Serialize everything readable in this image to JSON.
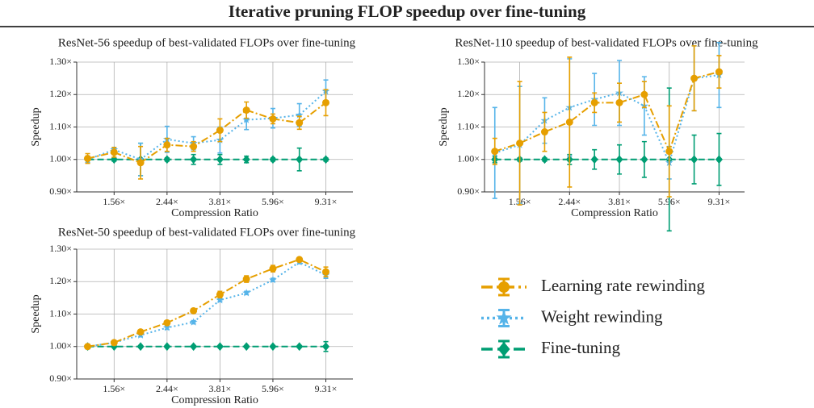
{
  "title": "Iterative pruning FLOP speedup over fine-tuning",
  "chart_data": [
    {
      "type": "line",
      "title": "ResNet-56 speedup of best-validated FLOPs over fine-tuning",
      "x_label": "Compression Ratio",
      "y_label": "Speedup",
      "xscale": "log",
      "grid": true,
      "x": [
        1.25,
        1.5625,
        1.953125,
        2.441406,
        3.051758,
        3.814697,
        4.768372,
        5.960464,
        7.450581,
        9.313226
      ],
      "xlim": [
        1.14,
        11.7
      ],
      "xticks": [
        {
          "value": 1.5625,
          "label": "1.56×"
        },
        {
          "value": 2.441406,
          "label": "2.44×"
        },
        {
          "value": 3.814697,
          "label": "3.81×"
        },
        {
          "value": 5.960464,
          "label": "5.96×"
        },
        {
          "value": 9.313226,
          "label": "9.31×"
        }
      ],
      "ylim": [
        0.9,
        1.3
      ],
      "yticks": [
        {
          "value": 0.9,
          "label": "0.90×"
        },
        {
          "value": 1.0,
          "label": "1.00×"
        },
        {
          "value": 1.1,
          "label": "1.10×"
        },
        {
          "value": 1.2,
          "label": "1.20×"
        },
        {
          "value": 1.3,
          "label": "1.30×"
        }
      ],
      "series": [
        {
          "name": "Learning rate rewinding",
          "color": "#E69F00",
          "marker": "circle",
          "dash": "dashdot",
          "values": [
            1.003,
            1.022,
            0.99,
            1.045,
            1.04,
            1.09,
            1.152,
            1.125,
            1.113,
            1.175
          ],
          "errors": [
            0.015,
            0.015,
            0.05,
            0.02,
            0.015,
            0.035,
            0.025,
            0.015,
            0.02,
            0.04
          ]
        },
        {
          "name": "Weight rewinding",
          "color": "#56B4E9",
          "marker": "star",
          "dash": "dotted",
          "values": [
            1.0,
            1.03,
            1.0,
            1.062,
            1.05,
            1.06,
            1.122,
            1.127,
            1.137,
            1.21
          ],
          "errors": [
            0.01,
            0.005,
            0.05,
            0.04,
            0.02,
            0.04,
            0.03,
            0.03,
            0.035,
            0.035
          ]
        },
        {
          "name": "Fine-tuning",
          "color": "#009E73",
          "marker": "diamond",
          "dash": "dashed",
          "values": [
            1.0,
            1.0,
            1.0,
            1.0,
            1.0,
            1.0,
            1.0,
            1.0,
            1.0,
            1.0
          ],
          "errors": [
            0.01,
            0.005,
            0.05,
            0.005,
            0.015,
            0.015,
            0.01,
            0.005,
            0.035,
            0.005
          ]
        }
      ]
    },
    {
      "type": "line",
      "title": "ResNet-110 speedup of best-validated FLOPs over fine-tuning",
      "x_label": "Compression Ratio",
      "y_label": "Speedup",
      "xscale": "log",
      "grid": true,
      "x": [
        1.25,
        1.5625,
        1.953125,
        2.441406,
        3.051758,
        3.814697,
        4.768372,
        5.960464,
        7.450581,
        9.313226
      ],
      "xlim": [
        1.14,
        11.7
      ],
      "xticks": [
        {
          "value": 1.5625,
          "label": "1.56×"
        },
        {
          "value": 2.441406,
          "label": "2.44×"
        },
        {
          "value": 3.814697,
          "label": "3.81×"
        },
        {
          "value": 5.960464,
          "label": "5.96×"
        },
        {
          "value": 9.313226,
          "label": "9.31×"
        }
      ],
      "ylim": [
        0.9,
        1.3
      ],
      "yticks": [
        {
          "value": 0.9,
          "label": "0.90×"
        },
        {
          "value": 1.0,
          "label": "1.00×"
        },
        {
          "value": 1.1,
          "label": "1.10×"
        },
        {
          "value": 1.2,
          "label": "1.20×"
        },
        {
          "value": 1.3,
          "label": "1.30×"
        }
      ],
      "series": [
        {
          "name": "Learning rate rewinding",
          "color": "#E69F00",
          "marker": "circle",
          "dash": "dashdot",
          "values": [
            1.025,
            1.05,
            1.085,
            1.115,
            1.175,
            1.175,
            1.2,
            1.025,
            1.25,
            1.27
          ],
          "errors": [
            0.04,
            0.19,
            0.06,
            0.2,
            0.03,
            0.06,
            0.04,
            0.14,
            0.1,
            0.05
          ]
        },
        {
          "name": "Weight rewinding",
          "color": "#56B4E9",
          "marker": "star",
          "dash": "dotted",
          "values": [
            1.02,
            1.045,
            1.12,
            1.16,
            1.185,
            1.205,
            1.165,
            0.99,
            1.25,
            1.26
          ],
          "errors": [
            0.14,
            0.18,
            0.07,
            0.15,
            0.08,
            0.1,
            0.09,
            0.05,
            0.1,
            0.1
          ]
        },
        {
          "name": "Fine-tuning",
          "color": "#009E73",
          "marker": "diamond",
          "dash": "dashed",
          "values": [
            1.0,
            1.0,
            1.0,
            1.0,
            1.0,
            1.0,
            1.0,
            1.0,
            1.0,
            1.0
          ],
          "errors": [
            0.01,
            0.005,
            0.005,
            0.015,
            0.03,
            0.045,
            0.055,
            0.22,
            0.075,
            0.08
          ]
        }
      ]
    },
    {
      "type": "line",
      "title": "ResNet-50 speedup of best-validated FLOPs over fine-tuning",
      "x_label": "Compression Ratio",
      "y_label": "Speedup",
      "xscale": "log",
      "grid": true,
      "x": [
        1.25,
        1.5625,
        1.953125,
        2.441406,
        3.051758,
        3.814697,
        4.768372,
        5.960464,
        7.450581,
        9.313226
      ],
      "xlim": [
        1.14,
        11.7
      ],
      "xticks": [
        {
          "value": 1.5625,
          "label": "1.56×"
        },
        {
          "value": 2.441406,
          "label": "2.44×"
        },
        {
          "value": 3.814697,
          "label": "3.81×"
        },
        {
          "value": 5.960464,
          "label": "5.96×"
        },
        {
          "value": 9.313226,
          "label": "9.31×"
        }
      ],
      "ylim": [
        0.9,
        1.3
      ],
      "yticks": [
        {
          "value": 0.9,
          "label": "0.90×"
        },
        {
          "value": 1.0,
          "label": "1.00×"
        },
        {
          "value": 1.1,
          "label": "1.10×"
        },
        {
          "value": 1.2,
          "label": "1.20×"
        },
        {
          "value": 1.3,
          "label": "1.30×"
        }
      ],
      "series": [
        {
          "name": "Learning rate rewinding",
          "color": "#E69F00",
          "marker": "circle",
          "dash": "dashdot",
          "values": [
            1.0,
            1.012,
            1.045,
            1.073,
            1.11,
            1.16,
            1.208,
            1.24,
            1.268,
            1.23
          ],
          "errors": [
            0.003,
            0.003,
            0.005,
            0.005,
            0.005,
            0.01,
            0.01,
            0.01,
            0.005,
            0.015
          ]
        },
        {
          "name": "Weight rewinding",
          "color": "#56B4E9",
          "marker": "star",
          "dash": "dotted",
          "values": [
            1.0,
            1.012,
            1.035,
            1.058,
            1.075,
            1.143,
            1.165,
            1.205,
            1.26,
            1.22
          ],
          "errors": [
            0.003,
            0.003,
            0.005,
            0.005,
            0.005,
            0.005,
            0.005,
            0.005,
            0.005,
            0.01
          ]
        },
        {
          "name": "Fine-tuning",
          "color": "#009E73",
          "marker": "diamond",
          "dash": "dashed",
          "values": [
            1.0,
            1.0,
            1.0,
            1.0,
            1.0,
            1.0,
            1.0,
            1.0,
            1.0,
            1.0
          ],
          "errors": [
            0.003,
            0.003,
            0.003,
            0.003,
            0.003,
            0.003,
            0.003,
            0.003,
            0.003,
            0.015
          ]
        }
      ]
    }
  ]
}
